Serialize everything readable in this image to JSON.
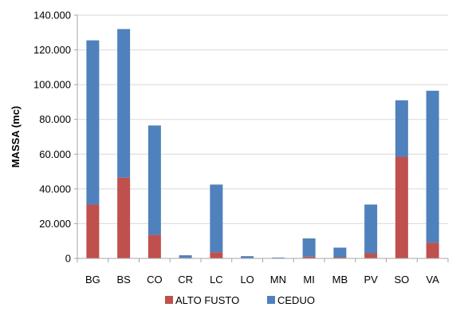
{
  "chart_data": {
    "type": "bar",
    "stacked": true,
    "title": "",
    "xlabel": "",
    "ylabel": "MASSA (mc)",
    "ylim": [
      0,
      140000
    ],
    "yticks": [
      0,
      20000,
      40000,
      60000,
      80000,
      100000,
      120000,
      140000
    ],
    "ytick_labels": [
      "0",
      "20.000",
      "40.000",
      "60.000",
      "80.000",
      "100.000",
      "120.000",
      "140.000"
    ],
    "categories": [
      "BG",
      "BS",
      "CO",
      "CR",
      "LC",
      "LO",
      "MN",
      "MI",
      "MB",
      "PV",
      "SO",
      "VA"
    ],
    "series": [
      {
        "name": "ALTO FUSTO",
        "color": "#C0504D",
        "values": [
          31000,
          46500,
          13500,
          300,
          3500,
          200,
          100,
          1000,
          700,
          3000,
          58500,
          9000
        ]
      },
      {
        "name": "CEDUO",
        "color": "#4F81BD",
        "values": [
          94500,
          85500,
          63000,
          1500,
          39000,
          1100,
          400,
          10500,
          5500,
          28000,
          32500,
          87500
        ]
      }
    ],
    "grid": "horizontal",
    "legend": "bottom"
  }
}
